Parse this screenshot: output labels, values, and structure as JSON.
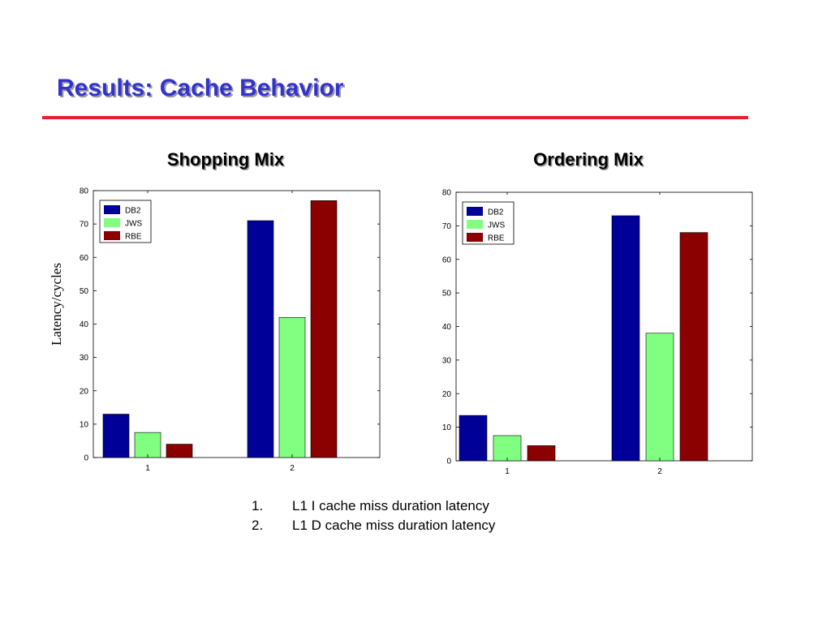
{
  "slide": {
    "title": "Results: Cache Behavior",
    "ylabel": "Latency/cycles",
    "notes": [
      {
        "num": "1.",
        "text": "L1 I cache miss duration latency"
      },
      {
        "num": "2.",
        "text": "L1 D cache miss duration latency"
      }
    ]
  },
  "colors": {
    "title": "#3333cc",
    "rule": "#e8202a"
  },
  "chart_data": [
    {
      "type": "bar",
      "title": "Shopping Mix",
      "categories": [
        "1",
        "2"
      ],
      "series": [
        {
          "name": "DB2",
          "color": "#000099",
          "values": [
            13,
            71
          ]
        },
        {
          "name": "JWS",
          "color": "#80ff80",
          "values": [
            7.5,
            42
          ]
        },
        {
          "name": "RBE",
          "color": "#8b0000",
          "values": [
            4,
            77
          ]
        }
      ],
      "ylim": [
        0,
        80
      ],
      "yticks": [
        0,
        10,
        20,
        30,
        40,
        50,
        60,
        70,
        80
      ],
      "legend": "top-left",
      "grid": false
    },
    {
      "type": "bar",
      "title": "Ordering Mix",
      "categories": [
        "1",
        "2"
      ],
      "series": [
        {
          "name": "DB2",
          "color": "#000099",
          "values": [
            13.5,
            73
          ]
        },
        {
          "name": "JWS",
          "color": "#80ff80",
          "values": [
            7.5,
            38
          ]
        },
        {
          "name": "RBE",
          "color": "#8b0000",
          "values": [
            4.5,
            68
          ]
        }
      ],
      "ylim": [
        0,
        80
      ],
      "yticks": [
        0,
        10,
        20,
        30,
        40,
        50,
        60,
        70,
        80
      ],
      "legend": "top-left",
      "grid": false
    }
  ]
}
